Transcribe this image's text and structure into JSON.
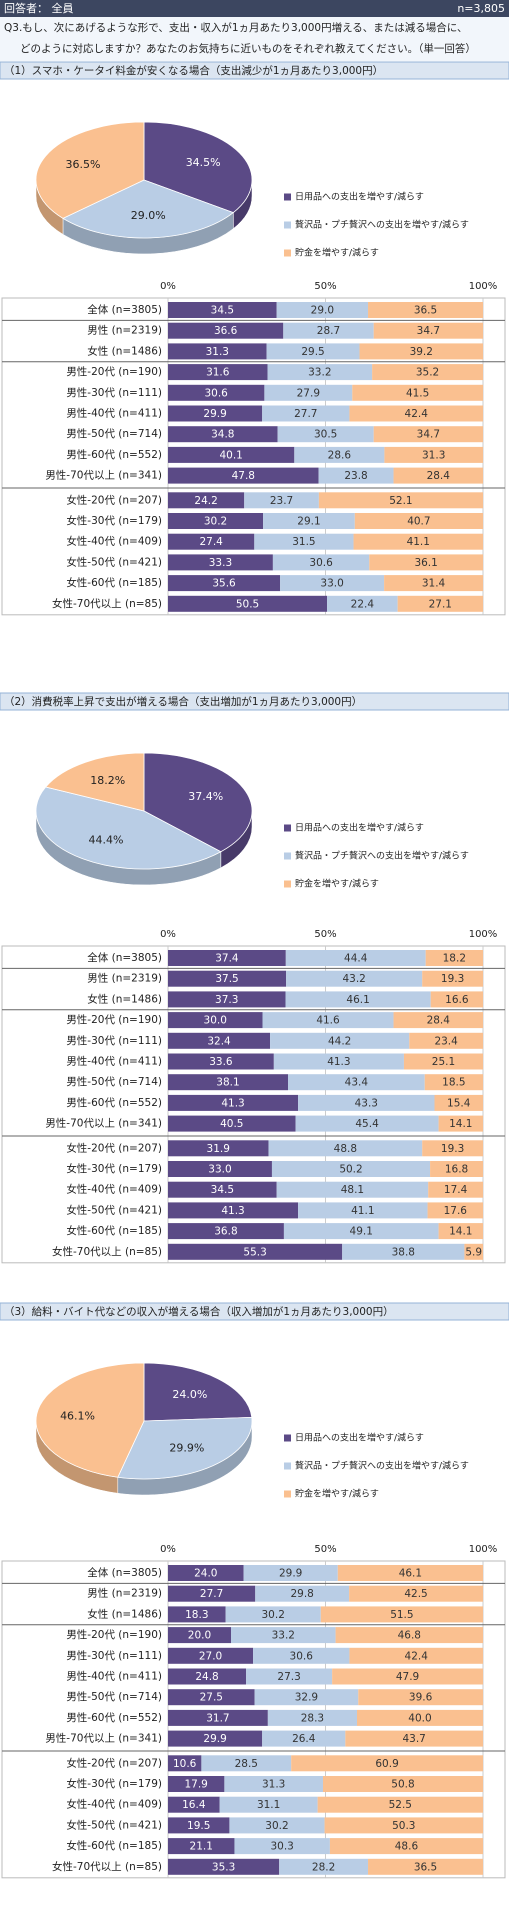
{
  "header": {
    "respondents": "回答者： 全員",
    "n": "n=3,805"
  },
  "question": [
    "Q3.もし、次にあげるような形で、支出・収入が1ヵ月あたり3,000円増える、または減る場合に、",
    "どのように対応しますか？あなたのお気持ちに近いものをそれぞれ教えてください。（単一回答）"
  ],
  "chart_data": [
    {
      "type": "pie",
      "title": "（1）スマホ・ケータイ料金が安くなる場合（支出減少が1ヵ月あたり3,000円）",
      "categories": [
        "日用品への支出を増やす/減らす",
        "贅沢品・プチ贅沢への支出を増やす/減らす",
        "貯金を増やす/減らす"
      ],
      "values": [
        34.5,
        29.0,
        36.5
      ],
      "value_labels": [
        "34.5%",
        "29.0%",
        "36.5%"
      ],
      "colors": [
        "#5b4a86",
        "#b9cde5",
        "#fac090"
      ],
      "legend": "right"
    },
    {
      "type": "stacked_barh",
      "categories": [
        "全体 (n=3805)",
        "男性 (n=2319)",
        "女性 (n=1486)",
        "男性-20代 (n=190)",
        "男性-30代 (n=111)",
        "男性-40代 (n=411)",
        "男性-50代 (n=714)",
        "男性-60代 (n=552)",
        "男性-70代以上 (n=341)",
        "女性-20代 (n=207)",
        "女性-30代 (n=179)",
        "女性-40代 (n=409)",
        "女性-50代 (n=421)",
        "女性-60代 (n=185)",
        "女性-70代以上 (n=85)"
      ],
      "series": [
        {
          "color": "#5b4a86",
          "values": [
            34.5,
            36.6,
            31.3,
            31.6,
            30.6,
            29.9,
            34.8,
            40.1,
            47.8,
            24.2,
            30.2,
            27.4,
            33.3,
            35.6,
            50.5
          ],
          "value_labels": [
            "34.5",
            "36.6",
            "31.3",
            "31.6",
            "30.6",
            "29.9",
            "34.8",
            "40.1",
            "47.8",
            "24.2",
            "30.2",
            "27.4",
            "33.3",
            "35.6",
            "50.5"
          ]
        },
        {
          "color": "#b9cde5",
          "values": [
            29.0,
            28.7,
            29.5,
            33.2,
            27.9,
            27.7,
            30.5,
            28.6,
            23.8,
            23.7,
            29.1,
            31.5,
            30.6,
            33.0,
            22.4
          ],
          "value_labels": [
            "29.0",
            "28.7",
            "29.5",
            "33.2",
            "27.9",
            "27.7",
            "30.5",
            "28.6",
            "23.8",
            "23.7",
            "29.1",
            "31.5",
            "30.6",
            "33.0",
            "22.4"
          ]
        },
        {
          "color": "#fac090",
          "values": [
            36.5,
            34.7,
            39.2,
            35.2,
            41.5,
            42.4,
            34.7,
            31.3,
            28.4,
            52.1,
            40.7,
            41.1,
            36.1,
            31.4,
            27.1
          ],
          "value_labels": [
            "36.5",
            "34.7",
            "39.2",
            "35.2",
            "41.5",
            "42.4",
            "34.7",
            "31.3",
            "28.4",
            "52.1",
            "40.7",
            "41.1",
            "36.1",
            "31.4",
            "27.1"
          ]
        }
      ],
      "xlim": [
        0,
        100
      ],
      "xticks": [
        {
          "value": 0,
          "label": "0%"
        },
        {
          "value": 50,
          "label": "50%"
        },
        {
          "value": 100,
          "label": "100%"
        }
      ],
      "grid": true
    },
    {
      "type": "pie",
      "title": "（2）消費税率上昇で支出が増える場合（支出増加が1ヵ月あたり3,000円）",
      "categories": [
        "日用品への支出を増やす/減らす",
        "贅沢品・プチ贅沢への支出を増やす/減らす",
        "貯金を増やす/減らす"
      ],
      "values": [
        37.4,
        44.4,
        18.2
      ],
      "value_labels": [
        "37.4%",
        "44.4%",
        "18.2%"
      ],
      "colors": [
        "#5b4a86",
        "#b9cde5",
        "#fac090"
      ],
      "legend": "right"
    },
    {
      "type": "stacked_barh",
      "categories": [
        "全体 (n=3805)",
        "男性 (n=2319)",
        "女性 (n=1486)",
        "男性-20代 (n=190)",
        "男性-30代 (n=111)",
        "男性-40代 (n=411)",
        "男性-50代 (n=714)",
        "男性-60代 (n=552)",
        "男性-70代以上 (n=341)",
        "女性-20代 (n=207)",
        "女性-30代 (n=179)",
        "女性-40代 (n=409)",
        "女性-50代 (n=421)",
        "女性-60代 (n=185)",
        "女性-70代以上 (n=85)"
      ],
      "series": [
        {
          "color": "#5b4a86",
          "values": [
            37.4,
            37.5,
            37.3,
            30.0,
            32.4,
            33.6,
            38.1,
            41.3,
            40.5,
            31.9,
            33.0,
            34.5,
            41.3,
            36.8,
            55.3
          ],
          "value_labels": [
            "37.4",
            "37.5",
            "37.3",
            "30.0",
            "32.4",
            "33.6",
            "38.1",
            "41.3",
            "40.5",
            "31.9",
            "33.0",
            "34.5",
            "41.3",
            "36.8",
            "55.3"
          ]
        },
        {
          "color": "#b9cde5",
          "values": [
            44.4,
            43.2,
            46.1,
            41.6,
            44.2,
            41.3,
            43.4,
            43.3,
            45.4,
            48.8,
            50.2,
            48.1,
            41.1,
            49.1,
            38.8
          ],
          "value_labels": [
            "44.4",
            "43.2",
            "46.1",
            "41.6",
            "44.2",
            "41.3",
            "43.4",
            "43.3",
            "45.4",
            "48.8",
            "50.2",
            "48.1",
            "41.1",
            "49.1",
            "38.8"
          ]
        },
        {
          "color": "#fac090",
          "values": [
            18.2,
            19.3,
            16.6,
            28.4,
            23.4,
            25.1,
            18.5,
            15.4,
            14.1,
            19.3,
            16.8,
            17.4,
            17.6,
            14.1,
            5.9
          ],
          "value_labels": [
            "18.2",
            "19.3",
            "16.6",
            "28.4",
            "23.4",
            "25.1",
            "18.5",
            "15.4",
            "14.1",
            "19.3",
            "16.8",
            "17.4",
            "17.6",
            "14.1",
            "5.9"
          ]
        }
      ],
      "xlim": [
        0,
        100
      ],
      "xticks": [
        {
          "value": 0,
          "label": "0%"
        },
        {
          "value": 50,
          "label": "50%"
        },
        {
          "value": 100,
          "label": "100%"
        }
      ],
      "grid": true
    },
    {
      "type": "pie",
      "title": "（3）給料・バイト代などの収入が増える場合（収入増加が1ヵ月あたり3,000円）",
      "categories": [
        "日用品への支出を増やす/減らす",
        "贅沢品・プチ贅沢への支出を増やす/減らす",
        "貯金を増やす/減らす"
      ],
      "values": [
        24.0,
        29.9,
        46.1
      ],
      "value_labels": [
        "24.0%",
        "29.9%",
        "46.1%"
      ],
      "colors": [
        "#5b4a86",
        "#b9cde5",
        "#fac090"
      ],
      "legend": "right"
    },
    {
      "type": "stacked_barh",
      "categories": [
        "全体 (n=3805)",
        "男性 (n=2319)",
        "女性 (n=1486)",
        "男性-20代 (n=190)",
        "男性-30代 (n=111)",
        "男性-40代 (n=411)",
        "男性-50代 (n=714)",
        "男性-60代 (n=552)",
        "男性-70代以上 (n=341)",
        "女性-20代 (n=207)",
        "女性-30代 (n=179)",
        "女性-40代 (n=409)",
        "女性-50代 (n=421)",
        "女性-60代 (n=185)",
        "女性-70代以上 (n=85)"
      ],
      "series": [
        {
          "color": "#5b4a86",
          "values": [
            24.0,
            27.7,
            18.3,
            20.0,
            27.0,
            24.8,
            27.5,
            31.7,
            29.9,
            10.6,
            17.9,
            16.4,
            19.5,
            21.1,
            35.3
          ],
          "value_labels": [
            "24.0",
            "27.7",
            "18.3",
            "20.0",
            "27.0",
            "24.8",
            "27.5",
            "31.7",
            "29.9",
            "10.6",
            "17.9",
            "16.4",
            "19.5",
            "21.1",
            "35.3"
          ]
        },
        {
          "color": "#b9cde5",
          "values": [
            29.9,
            29.8,
            30.2,
            33.2,
            30.6,
            27.3,
            32.9,
            28.3,
            26.4,
            28.5,
            31.3,
            31.1,
            30.2,
            30.3,
            28.2
          ],
          "value_labels": [
            "29.9",
            "29.8",
            "30.2",
            "33.2",
            "30.6",
            "27.3",
            "32.9",
            "28.3",
            "26.4",
            "28.5",
            "31.3",
            "31.1",
            "30.2",
            "30.3",
            "28.2"
          ]
        },
        {
          "color": "#fac090",
          "values": [
            46.1,
            42.5,
            51.5,
            46.8,
            42.4,
            47.9,
            39.6,
            40.0,
            43.7,
            60.9,
            50.8,
            52.5,
            50.3,
            48.6,
            36.5
          ],
          "value_labels": [
            "46.1",
            "42.5",
            "51.5",
            "46.8",
            "42.4",
            "47.9",
            "39.6",
            "40.0",
            "43.7",
            "60.9",
            "50.8",
            "52.5",
            "50.3",
            "48.6",
            "36.5"
          ]
        }
      ],
      "xlim": [
        0,
        100
      ],
      "xticks": [
        {
          "value": 0,
          "label": "0%"
        },
        {
          "value": 50,
          "label": "50%"
        },
        {
          "value": 100,
          "label": "100%"
        }
      ],
      "grid": true
    }
  ]
}
